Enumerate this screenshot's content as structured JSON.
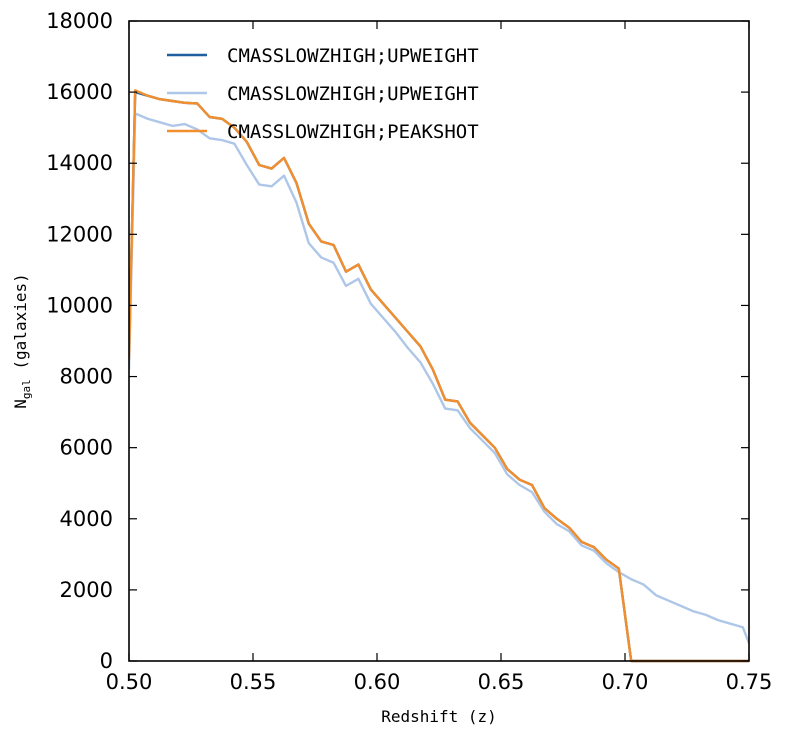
{
  "chart_data": {
    "type": "line",
    "xlabel": "Redshift (z)",
    "ylabel_main": "N",
    "ylabel_sub": "gal",
    "ylabel_rest": " (galaxies)",
    "xlim": [
      0.5,
      0.75
    ],
    "ylim": [
      0,
      18000
    ],
    "xticks": [
      0.5,
      0.55,
      0.6,
      0.65,
      0.7,
      0.75
    ],
    "xtick_labels": [
      "0.50",
      "0.55",
      "0.60",
      "0.65",
      "0.70",
      "0.75"
    ],
    "yticks": [
      0,
      2000,
      4000,
      6000,
      8000,
      10000,
      12000,
      14000,
      16000,
      18000
    ],
    "ytick_labels": [
      "0",
      "2000",
      "4000",
      "6000",
      "8000",
      "10000",
      "12000",
      "14000",
      "16000",
      "18000"
    ],
    "legend_position": "top-left",
    "grid": false,
    "series": [
      {
        "name": "CMASSLOWZHIGH;UPWEIGHT",
        "color": "#1f5fa0",
        "x": [
          0.5,
          0.5025,
          0.5075,
          0.5125,
          0.5175,
          0.5225,
          0.5275,
          0.5325,
          0.5375,
          0.5425,
          0.5475,
          0.5525,
          0.5575,
          0.5625,
          0.5675,
          0.5725,
          0.5775,
          0.5825,
          0.5875,
          0.5925,
          0.5975,
          0.6025,
          0.6075,
          0.6125,
          0.6175,
          0.6225,
          0.6275,
          0.6325,
          0.6375,
          0.6425,
          0.6475,
          0.6525,
          0.6575,
          0.6625,
          0.6675,
          0.6725,
          0.6775,
          0.6825,
          0.6875,
          0.6925,
          0.6975,
          0.7025,
          0.7075,
          0.75
        ],
        "y": [
          8500,
          16000,
          15900,
          15800,
          15750,
          15700,
          15680,
          15300,
          15250,
          15000,
          14600,
          13950,
          13850,
          14150,
          13450,
          12300,
          11800,
          11700,
          10950,
          11150,
          10450,
          10050,
          9650,
          9250,
          8850,
          8200,
          7350,
          7300,
          6700,
          6350,
          6000,
          5400,
          5100,
          4950,
          4300,
          4000,
          3750,
          3350,
          3200,
          2850,
          2600,
          0,
          0,
          0
        ]
      },
      {
        "name": "CMASSLOWZHIGH;UPWEIGHT",
        "color": "#aec7e8",
        "x": [
          0.5,
          0.5025,
          0.5075,
          0.5125,
          0.5175,
          0.5225,
          0.5275,
          0.5325,
          0.5375,
          0.5425,
          0.5475,
          0.5525,
          0.5575,
          0.5625,
          0.5675,
          0.5725,
          0.5775,
          0.5825,
          0.5875,
          0.5925,
          0.5975,
          0.6025,
          0.6075,
          0.6125,
          0.6175,
          0.6225,
          0.6275,
          0.6325,
          0.6375,
          0.6425,
          0.6475,
          0.6525,
          0.6575,
          0.6625,
          0.6675,
          0.6725,
          0.6775,
          0.6825,
          0.6875,
          0.6925,
          0.6975,
          0.7025,
          0.7075,
          0.7125,
          0.7175,
          0.7225,
          0.7275,
          0.7325,
          0.7375,
          0.7425,
          0.7475,
          0.75
        ],
        "y": [
          8200,
          15400,
          15250,
          15150,
          15050,
          15100,
          14950,
          14700,
          14650,
          14550,
          13950,
          13400,
          13350,
          13650,
          12900,
          11750,
          11350,
          11200,
          10550,
          10750,
          10050,
          9650,
          9250,
          8800,
          8400,
          7800,
          7100,
          7050,
          6550,
          6200,
          5850,
          5250,
          4950,
          4750,
          4200,
          3850,
          3650,
          3250,
          3100,
          2750,
          2500,
          2300,
          2150,
          1850,
          1700,
          1550,
          1400,
          1300,
          1150,
          1050,
          950,
          500
        ]
      },
      {
        "name": "CMASSLOWZHIGH;PEAKSHOT",
        "color": "#f28e2b",
        "x": [
          0.5,
          0.5025,
          0.5075,
          0.5125,
          0.5175,
          0.5225,
          0.5275,
          0.5325,
          0.5375,
          0.5425,
          0.5475,
          0.5525,
          0.5575,
          0.5625,
          0.5675,
          0.5725,
          0.5775,
          0.5825,
          0.5875,
          0.5925,
          0.5975,
          0.6025,
          0.6075,
          0.6125,
          0.6175,
          0.6225,
          0.6275,
          0.6325,
          0.6375,
          0.6425,
          0.6475,
          0.6525,
          0.6575,
          0.6625,
          0.6675,
          0.6725,
          0.6775,
          0.6825,
          0.6875,
          0.6925,
          0.6975,
          0.7025,
          0.7075,
          0.75
        ],
        "y": [
          8500,
          16050,
          15900,
          15800,
          15750,
          15700,
          15680,
          15300,
          15250,
          15000,
          14600,
          13950,
          13850,
          14150,
          13450,
          12300,
          11800,
          11700,
          10950,
          11150,
          10450,
          10050,
          9650,
          9250,
          8850,
          8200,
          7350,
          7300,
          6700,
          6350,
          6000,
          5400,
          5100,
          4950,
          4300,
          4000,
          3750,
          3350,
          3200,
          2850,
          2600,
          0,
          0,
          0
        ]
      }
    ]
  }
}
